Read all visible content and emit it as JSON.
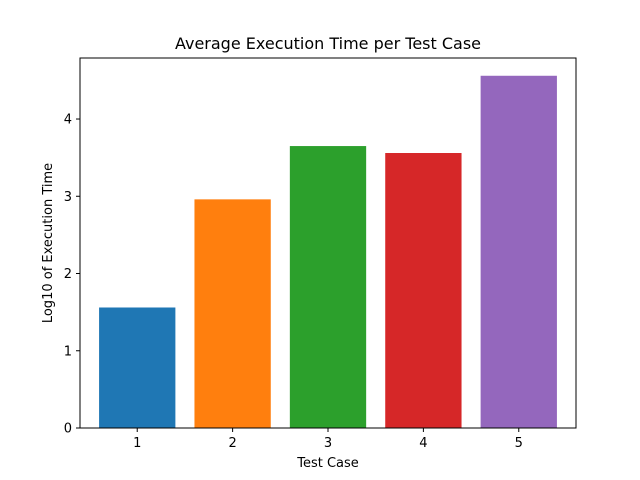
{
  "chart_data": {
    "type": "bar",
    "title": "Average Execution Time per Test Case",
    "xlabel": "Test Case",
    "ylabel": "Log10 of Execution Time",
    "categories": [
      "1",
      "2",
      "3",
      "4",
      "5"
    ],
    "values": [
      1.56,
      2.96,
      3.65,
      3.56,
      4.56
    ],
    "colors": [
      "#1f77b4",
      "#ff7f0e",
      "#2ca02c",
      "#d62728",
      "#9467bd"
    ],
    "ylim": [
      0,
      4.79
    ],
    "yticks": [
      "0",
      "1",
      "2",
      "3",
      "4"
    ],
    "grid": false
  }
}
